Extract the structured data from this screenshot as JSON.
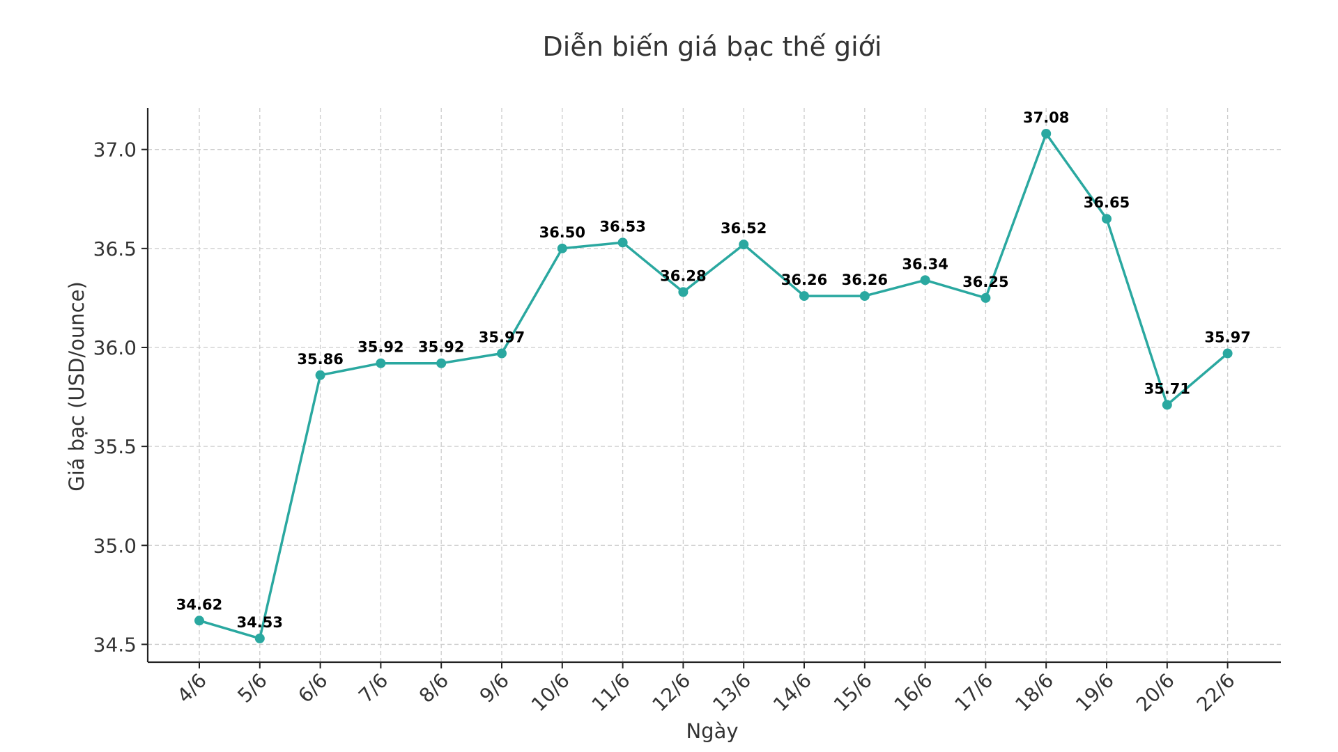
{
  "chart_data": {
    "type": "line",
    "title": "Diễn biến giá bạc thế giới",
    "xlabel": "Ngày",
    "ylabel": "Giá bạc (USD/ounce)",
    "categories": [
      "4/6",
      "5/6",
      "6/6",
      "7/6",
      "8/6",
      "9/6",
      "10/6",
      "11/6",
      "12/6",
      "13/6",
      "14/6",
      "15/6",
      "16/6",
      "17/6",
      "18/6",
      "19/6",
      "20/6",
      "22/6"
    ],
    "series": [
      {
        "name": "Giá bạc",
        "values": [
          34.62,
          34.53,
          35.86,
          35.92,
          35.92,
          35.97,
          36.5,
          36.53,
          36.28,
          36.52,
          36.26,
          36.26,
          36.34,
          36.25,
          37.08,
          36.65,
          35.71,
          35.97
        ]
      }
    ],
    "data_labels": [
      "34.62",
      "34.53",
      "35.86",
      "35.92",
      "35.92",
      "35.97",
      "36.50",
      "36.53",
      "36.28",
      "36.52",
      "36.26",
      "36.26",
      "36.34",
      "36.25",
      "37.08",
      "36.65",
      "35.71",
      "35.97"
    ],
    "ylim": [
      34.41,
      37.21
    ],
    "yticks": [
      34.5,
      35.0,
      35.5,
      36.0,
      36.5,
      37.0
    ],
    "ytick_labels": [
      "34.5",
      "35.0",
      "35.5",
      "36.0",
      "36.5",
      "37.0"
    ],
    "grid": true,
    "line_color": "#2aa8a0",
    "grid_color": "#cccccc",
    "axis_color": "#222222",
    "text_color": "#333333"
  }
}
